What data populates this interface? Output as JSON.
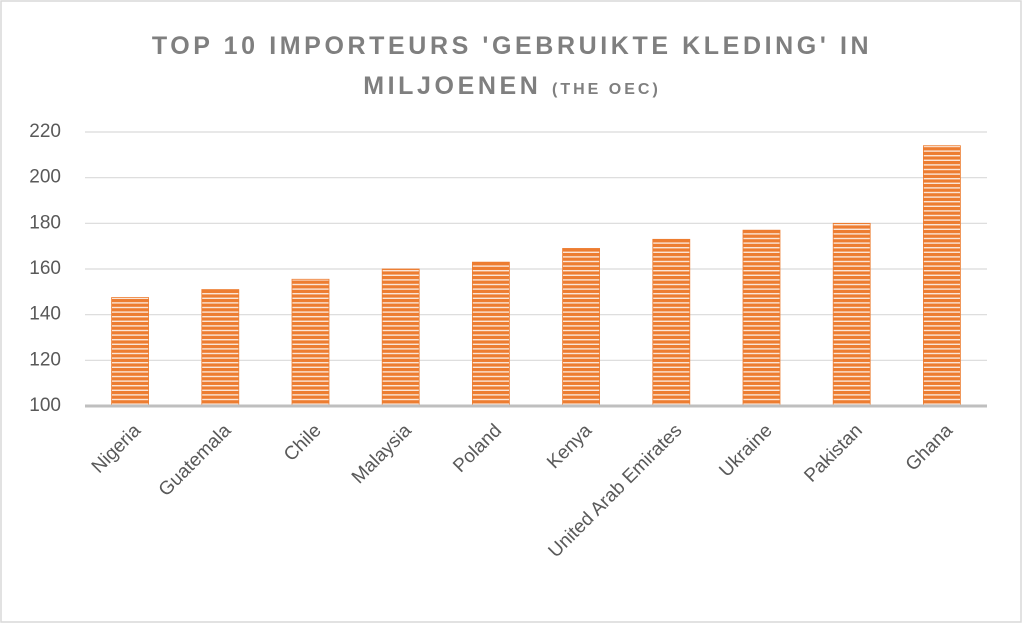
{
  "chart_data": {
    "type": "bar",
    "title": "TOP 10 IMPORTEURS 'GEBRUIKTE KLEDING' IN MILJOENEN",
    "subtitle": "(THE OEC)",
    "categories": [
      "Nigeria",
      "Guatemala",
      "Chile",
      "Malaysia",
      "Poland",
      "Kenya",
      "United Arab Emirates",
      "Ukraine",
      "Pakistan",
      "Ghana"
    ],
    "values": [
      147.5,
      151,
      155.5,
      160,
      163,
      169,
      173,
      177,
      180,
      214
    ],
    "color": "#ed7d31",
    "ylim": [
      100,
      220
    ],
    "yticks": [
      100,
      120,
      140,
      160,
      180,
      200,
      220
    ],
    "grid": true
  }
}
